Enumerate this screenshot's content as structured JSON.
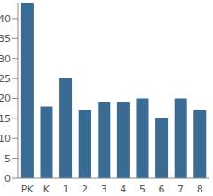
{
  "chart_data": {
    "type": "bar",
    "categories": [
      "PK",
      "K",
      "1",
      "2",
      "3",
      "4",
      "5",
      "6",
      "7",
      "8"
    ],
    "values": [
      44,
      18,
      25,
      17,
      19,
      19,
      20,
      15,
      20,
      17
    ],
    "color": "#3a6b93",
    "ylim": [
      0,
      44
    ],
    "yticks": [
      0,
      5,
      10,
      15,
      20,
      25,
      30,
      35,
      40
    ],
    "grid": false
  }
}
